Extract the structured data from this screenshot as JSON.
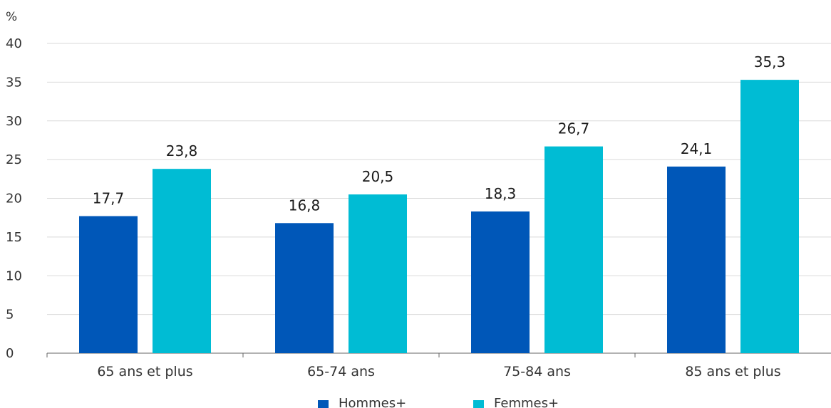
{
  "chart_data": {
    "type": "bar",
    "ylabel": "%",
    "ylim": [
      0,
      40
    ],
    "yticks": [
      "0",
      "5",
      "10",
      "15",
      "20",
      "25",
      "30",
      "35",
      "40"
    ],
    "grid": true,
    "legend_position": "bottom",
    "categories": [
      "65 ans et plus",
      "65-74 ans",
      "75-84 ans",
      "85 ans et plus"
    ],
    "series": [
      {
        "name": "Hommes+",
        "color": "#0057b8",
        "values": [
          17.7,
          16.8,
          18.3,
          24.1
        ],
        "labels": [
          "17,7",
          "16,8",
          "18,3",
          "24,1"
        ]
      },
      {
        "name": "Femmes+",
        "color": "#00bcd4",
        "values": [
          23.8,
          20.5,
          26.7,
          35.3
        ],
        "labels": [
          "23,8",
          "20,5",
          "26,7",
          "35,3"
        ]
      }
    ]
  }
}
